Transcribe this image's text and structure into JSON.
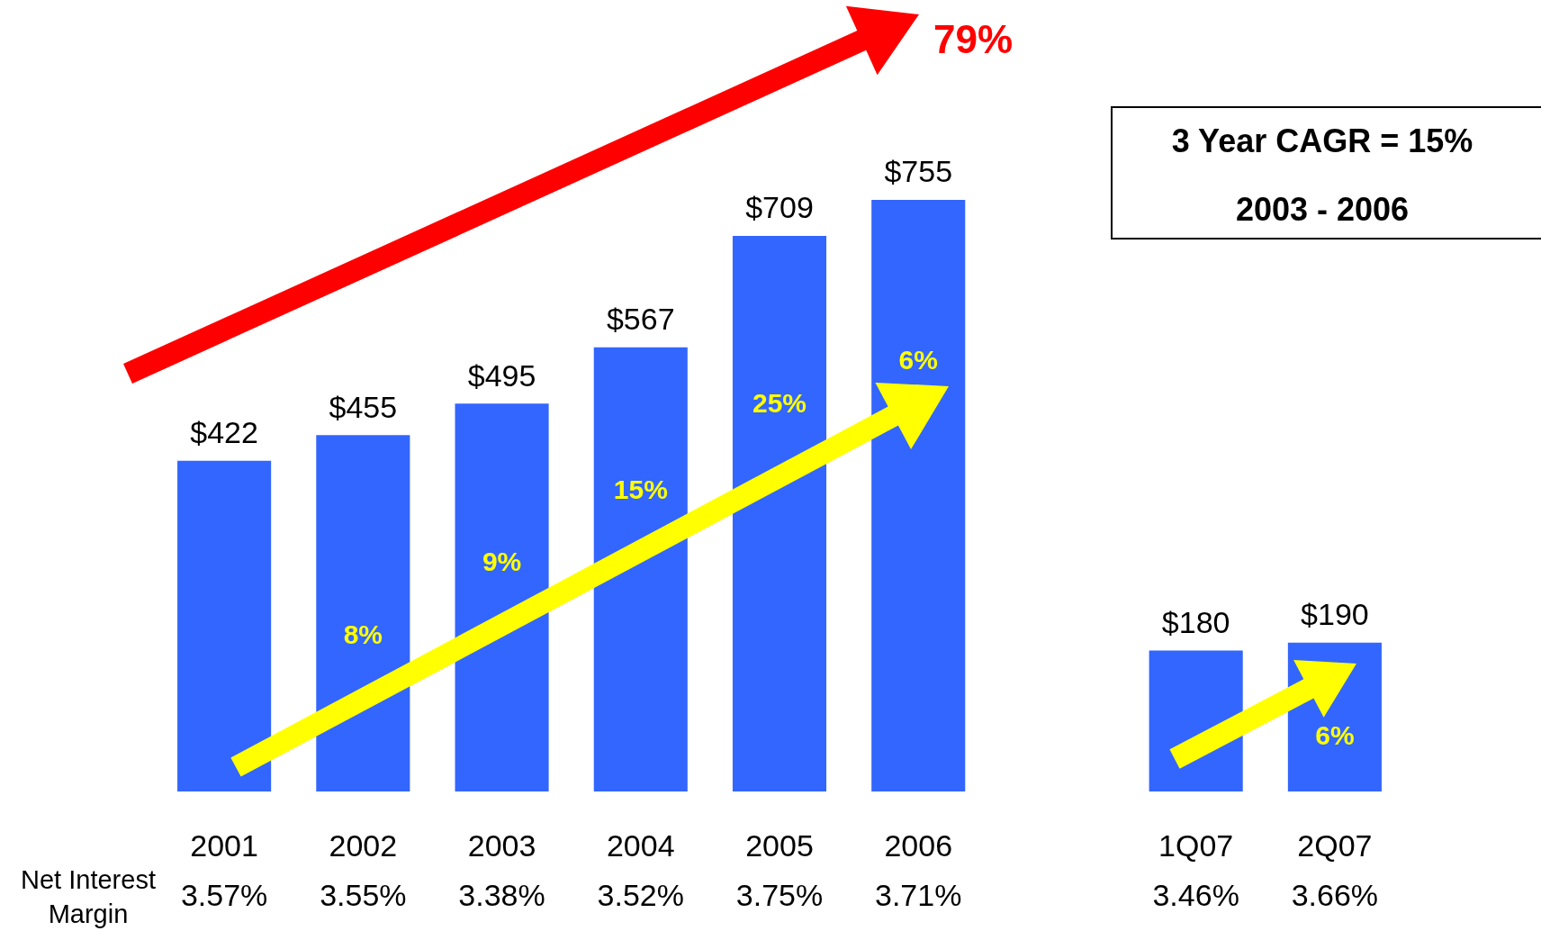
{
  "chart_data": {
    "type": "bar",
    "categories": [
      "2001",
      "2002",
      "2003",
      "2004",
      "2005",
      "2006",
      null,
      "1Q07",
      "2Q07"
    ],
    "values": [
      422,
      455,
      495,
      567,
      709,
      755,
      null,
      180,
      190
    ],
    "color": "#3366ff",
    "value_labels": [
      "$422",
      "$455",
      "$495",
      "$567",
      "$709",
      "$755",
      null,
      "$180",
      "$190"
    ],
    "legend": false,
    "annotations": [
      "79%",
      "3 Year CAGR = 15%",
      "2003 - 2006",
      "Net Interest Margin",
      "8%",
      "9%",
      "15%",
      "25%",
      "6%",
      "6%",
      "3.57%",
      "3.55%",
      "3.38%",
      "3.52%",
      "3.75%",
      "3.71%",
      "3.46%",
      "3.66%"
    ]
  }
}
